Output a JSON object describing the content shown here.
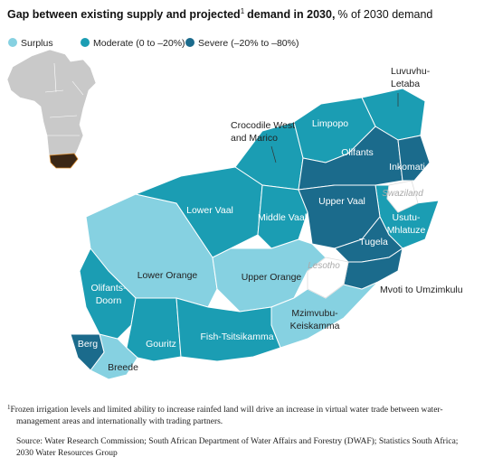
{
  "header": {
    "title_a": "Gap between existing supply and projected",
    "marker": "1",
    "title_b": "demand in 2030,",
    "subtitle": "% of 2030 demand"
  },
  "legend": [
    {
      "label": "Surplus",
      "color": "#86d1e1",
      "regions": [
        {
          "label": [
            "Lower Orange"
          ]
        },
        {
          "label": [
            "Upper Orange"
          ]
        },
        {
          "label": [
            "Mzimvubu-",
            "Keiskamma"
          ]
        },
        {
          "label": [
            "Breede"
          ]
        }
      ]
    },
    {
      "label": "Moderate (0 to –20%)",
      "color": "#1b9db3",
      "regions": [
        {
          "label": [
            "Luvuvhu-",
            "Letaba"
          ]
        },
        {
          "label": [
            "Crocodile West",
            "and Marico"
          ]
        },
        {
          "label": [
            "Limpopo"
          ]
        },
        {
          "label": [
            "Lower Vaal"
          ]
        },
        {
          "label": [
            "Middle Vaal"
          ]
        },
        {
          "label": [
            "Usutu-",
            "Mhlatuze"
          ]
        },
        {
          "label": [
            "Olifants-",
            "Doorn"
          ]
        },
        {
          "label": [
            "Gouritz"
          ]
        },
        {
          "label": [
            "Fish-Tsitsikamma"
          ]
        }
      ]
    },
    {
      "label": "Severe (–20% to –80%)",
      "color": "#1b6b8c",
      "regions": [
        {
          "label": [
            "Olifants"
          ]
        },
        {
          "label": [
            "Inkomati"
          ]
        },
        {
          "label": [
            "Upper Vaal"
          ]
        },
        {
          "label": [
            "Tugela"
          ]
        },
        {
          "label": [
            "Mvoti to Umzimkulu"
          ]
        },
        {
          "label": [
            "Berg"
          ]
        }
      ]
    }
  ],
  "other_areas": [
    "Swaziland",
    "Lesotho"
  ],
  "footnote": [
    "Frozen irrigation levels and limited ability to increase rainfed land will drive an increase in virtual water trade between water-",
    "management areas and internationally with trading partners."
  ],
  "source": [
    "Source: Water Research Commission; South African Department of Water Affairs and Forestry (DWAF); Statistics South Africa;",
    "2030 Water Resources Group"
  ]
}
